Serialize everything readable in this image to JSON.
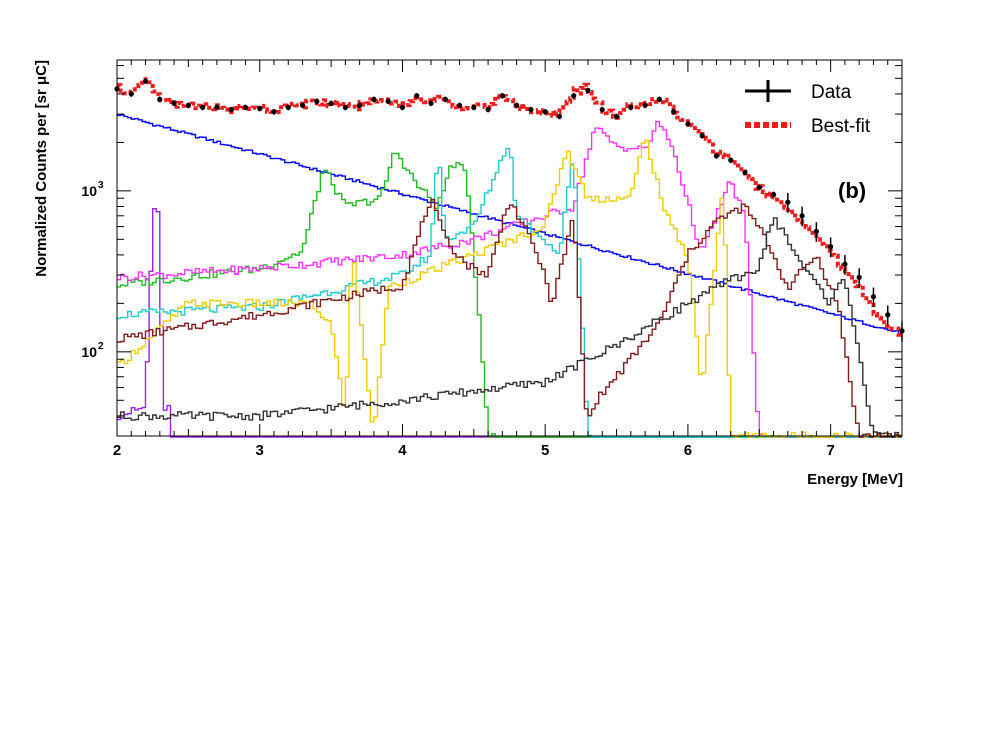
{
  "chart_data": {
    "type": "line",
    "subtype": "step-histogram",
    "panel_label": "(b)",
    "xlabel": "Energy [MeV]",
    "ylabel": "Normalized Counts per [sr μC]",
    "xlim": [
      2.0,
      7.5
    ],
    "ylim": [
      30,
      6500
    ],
    "yscale": "log",
    "x_ticks": [
      "2",
      "3",
      "4",
      "5",
      "6",
      "7"
    ],
    "y_ticks": [
      {
        "value": 100,
        "base": "10",
        "exp": "2"
      },
      {
        "value": 1000,
        "base": "10",
        "exp": "3"
      }
    ],
    "legend": {
      "placement": "top-right",
      "entries": [
        {
          "label": "Data",
          "color": "#000000",
          "style": "points-with-errorbars"
        },
        {
          "label": "Best-fit",
          "color": "#ee1c1c",
          "style": "dashed"
        }
      ]
    },
    "grid": false,
    "data_series": {
      "name": "Data",
      "color": "#000000",
      "x": [
        2.0,
        2.1,
        2.2,
        2.3,
        2.4,
        2.5,
        2.6,
        2.7,
        2.8,
        2.9,
        3.0,
        3.1,
        3.2,
        3.3,
        3.4,
        3.5,
        3.6,
        3.7,
        3.8,
        3.9,
        4.0,
        4.1,
        4.2,
        4.3,
        4.4,
        4.5,
        4.6,
        4.7,
        4.8,
        4.9,
        5.0,
        5.1,
        5.2,
        5.3,
        5.4,
        5.5,
        5.6,
        5.7,
        5.8,
        5.9,
        6.0,
        6.1,
        6.2,
        6.3,
        6.4,
        6.5,
        6.6,
        6.7,
        6.8,
        6.9,
        7.0,
        7.1,
        7.2,
        7.3,
        7.4,
        7.5
      ],
      "y": [
        4300,
        4000,
        4800,
        3700,
        3500,
        3400,
        3300,
        3300,
        3200,
        3300,
        3250,
        3100,
        3300,
        3400,
        3600,
        3500,
        3300,
        3400,
        3700,
        3600,
        3300,
        3900,
        3500,
        3700,
        3400,
        3300,
        3200,
        3900,
        3400,
        3200,
        3100,
        2900,
        3900,
        4200,
        3200,
        2900,
        3300,
        3400,
        3700,
        3100,
        2600,
        2200,
        1650,
        1550,
        1300,
        1050,
        950,
        850,
        700,
        560,
        450,
        350,
        290,
        220,
        170,
        135
      ]
    },
    "fit_series": {
      "name": "Best-fit",
      "color": "#ee1c1c",
      "x": [
        2.0,
        2.1,
        2.2,
        2.3,
        2.4,
        2.5,
        2.6,
        2.7,
        2.8,
        2.9,
        3.0,
        3.1,
        3.2,
        3.3,
        3.4,
        3.5,
        3.6,
        3.7,
        3.8,
        3.9,
        4.0,
        4.1,
        4.2,
        4.3,
        4.4,
        4.5,
        4.6,
        4.7,
        4.8,
        4.9,
        5.0,
        5.1,
        5.2,
        5.3,
        5.4,
        5.5,
        5.6,
        5.7,
        5.8,
        5.9,
        6.0,
        6.1,
        6.2,
        6.3,
        6.4,
        6.5,
        6.6,
        6.7,
        6.8,
        6.9,
        7.0,
        7.1,
        7.2,
        7.3,
        7.4,
        7.5
      ],
      "y": [
        4400,
        4100,
        5100,
        3700,
        3500,
        3400,
        3350,
        3300,
        3200,
        3300,
        3300,
        3150,
        3350,
        3450,
        3650,
        3450,
        3300,
        3350,
        3800,
        3550,
        3400,
        3850,
        3550,
        3750,
        3350,
        3300,
        3250,
        4000,
        3450,
        3150,
        3100,
        3050,
        4100,
        4400,
        3250,
        2900,
        3350,
        3350,
        3800,
        3150,
        2650,
        2250,
        1700,
        1600,
        1300,
        1050,
        900,
        780,
        640,
        530,
        420,
        320,
        250,
        185,
        145,
        130
      ]
    },
    "series": [
      {
        "name": "",
        "color": "#0000ff",
        "x": [
          2.0,
          7.5
        ],
        "y": [
          3000,
          130
        ],
        "shape": "exp"
      },
      {
        "name": "",
        "color": "#a020f0",
        "x": [
          2.0,
          2.2,
          2.25,
          2.28,
          2.33,
          2.4,
          7.5
        ],
        "y": [
          40,
          45,
          600,
          1150,
          45,
          0,
          0
        ]
      },
      {
        "name": "",
        "color": "#22bb22",
        "x": [
          2.0,
          3.0,
          3.3,
          3.45,
          3.6,
          3.85,
          3.95,
          4.1,
          4.25,
          4.35,
          4.45,
          4.55,
          4.6,
          4.7
        ],
        "y": [
          260,
          330,
          420,
          1400,
          800,
          900,
          1800,
          1100,
          800,
          1500,
          1300,
          130,
          30,
          0
        ]
      },
      {
        "name": "",
        "color": "#ff33ff",
        "x": [
          2.0,
          3.0,
          4.0,
          4.5,
          5.0,
          5.2,
          5.35,
          5.5,
          5.7,
          5.8,
          5.9,
          6.1,
          6.2,
          6.3,
          6.4,
          6.5,
          6.6
        ],
        "y": [
          290,
          330,
          400,
          500,
          700,
          800,
          2500,
          1900,
          1800,
          2700,
          1800,
          400,
          700,
          1150,
          700,
          30,
          0
        ]
      },
      {
        "name": "",
        "color": "#22cccc",
        "x": [
          2.0,
          3.0,
          4.0,
          4.2,
          4.25,
          4.3,
          4.5,
          4.75,
          4.8,
          5.0,
          5.1,
          5.2,
          5.3,
          5.4
        ],
        "y": [
          170,
          190,
          300,
          400,
          2000,
          500,
          600,
          2050,
          700,
          500,
          400,
          1800,
          30,
          0
        ]
      },
      {
        "name": "",
        "color": "#eecc00",
        "x": [
          2.0,
          2.5,
          3.0,
          3.35,
          3.5,
          3.6,
          3.65,
          3.8,
          3.9,
          4.5,
          5.0,
          5.15,
          5.3,
          5.6,
          5.7,
          5.85,
          6.0,
          6.1,
          6.25,
          6.3
        ],
        "y": [
          80,
          200,
          200,
          200,
          150,
          40,
          450,
          30,
          250,
          400,
          600,
          1800,
          900,
          900,
          2200,
          700,
          400,
          60,
          1100,
          30
        ]
      },
      {
        "name": "",
        "color": "#7f1d1d",
        "x": [
          2.0,
          3.0,
          4.0,
          4.2,
          4.3,
          4.45,
          4.6,
          4.75,
          4.95,
          5.05,
          5.2,
          5.3,
          5.32,
          5.5,
          5.8,
          6.0,
          6.2,
          6.4,
          6.55,
          6.7,
          6.9,
          7.05,
          7.2
        ],
        "y": [
          120,
          170,
          260,
          900,
          500,
          350,
          300,
          900,
          400,
          200,
          700,
          30,
          45,
          70,
          150,
          400,
          650,
          800,
          500,
          250,
          400,
          200,
          30
        ]
      },
      {
        "name": "",
        "color": "#333333",
        "x": [
          2.0,
          3.0,
          4.0,
          5.0,
          5.5,
          6.0,
          6.3,
          6.5,
          6.6,
          6.8,
          7.0,
          7.1,
          7.2,
          7.3
        ],
        "y": [
          40,
          40,
          50,
          65,
          110,
          200,
          280,
          330,
          700,
          350,
          200,
          300,
          100,
          30
        ]
      }
    ]
  }
}
